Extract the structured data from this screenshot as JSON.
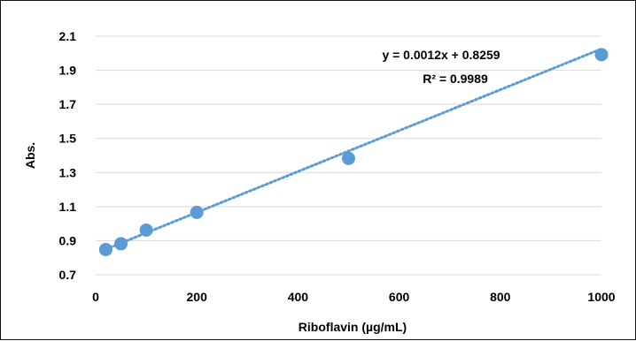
{
  "chart_data": {
    "type": "scatter",
    "title": "",
    "xlabel": "Riboflavin (µg/mL)",
    "ylabel": "Abs.",
    "xlim": [
      0,
      1000
    ],
    "ylim": [
      0.7,
      2.1
    ],
    "x_ticks": [
      0,
      200,
      400,
      600,
      800,
      1000
    ],
    "y_ticks": [
      0.7,
      0.9,
      1.1,
      1.3,
      1.5,
      1.7,
      1.9,
      2.1
    ],
    "x_tick_labels": [
      "0",
      "200",
      "400",
      "600",
      "800",
      "1000"
    ],
    "y_tick_labels": [
      "0.7",
      "0.9",
      "1.1",
      "1.3",
      "1.5",
      "1.7",
      "1.9",
      "2.1"
    ],
    "grid": "horizontal",
    "series": [
      {
        "x": [
          20,
          50,
          100,
          200,
          500,
          1000
        ],
        "values": [
          0.848,
          0.882,
          0.962,
          1.066,
          1.383,
          1.992
        ],
        "color": "#5b9bd5"
      }
    ],
    "trendline": {
      "type": "linear",
      "slope": 0.0012,
      "intercept": 0.8259,
      "style": "dotted",
      "color": "#5b9bd5"
    },
    "annotations": {
      "equation": "y = 0.0012x + 0.8259",
      "r_squared": "R² = 0.9989"
    }
  }
}
